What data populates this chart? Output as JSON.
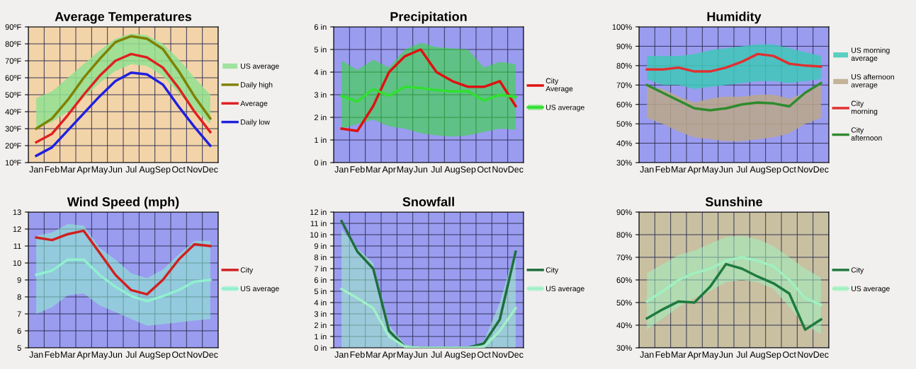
{
  "chart_data": [
    {
      "type": "line",
      "title": "Average Temperatures",
      "categories": [
        "Jan",
        "Feb",
        "Mar",
        "Apr",
        "May",
        "Jun",
        "Jul",
        "Aug",
        "Sep",
        "Oct",
        "Nov",
        "Dec"
      ],
      "ylim": [
        10,
        90
      ],
      "yticks": [
        {
          "value": 10,
          "label": "10ºF"
        },
        {
          "value": 20,
          "label": "20ºF"
        },
        {
          "value": 30,
          "label": "30ºF"
        },
        {
          "value": 40,
          "label": "40ºF"
        },
        {
          "value": 50,
          "label": "50ºF"
        },
        {
          "value": 60,
          "label": "60ºF"
        },
        {
          "value": 70,
          "label": "70ºF"
        },
        {
          "value": 80,
          "label": "80ºF"
        },
        {
          "value": 90,
          "label": "90ºF"
        }
      ],
      "grid": true,
      "legend": "right",
      "series": [
        {
          "name": "US average",
          "color": "#90e090",
          "values": [
            null,
            null,
            null,
            null,
            null,
            null,
            null,
            null,
            null,
            null,
            null,
            null
          ],
          "lower": [
            30,
            34,
            40,
            48,
            57,
            64,
            68,
            67,
            61,
            51,
            41,
            33
          ],
          "upper": [
            48,
            52,
            60,
            68,
            76,
            83,
            86,
            85,
            80,
            71,
            60,
            50
          ]
        },
        {
          "name": "Daily high",
          "color": "#808000",
          "values": [
            30,
            36,
            47,
            60,
            71,
            81,
            84.5,
            83,
            77,
            64,
            49,
            36
          ]
        },
        {
          "name": "Average",
          "color": "#e02020",
          "values": [
            22,
            27,
            38,
            50,
            61,
            70,
            74,
            72,
            66,
            54,
            40,
            28
          ]
        },
        {
          "name": "Daily low",
          "color": "#2020e0",
          "values": [
            14,
            19,
            29,
            39,
            49,
            58,
            63,
            62,
            56,
            43,
            31,
            20
          ]
        }
      ]
    },
    {
      "type": "line",
      "title": "Precipitation",
      "categories": [
        "Jan",
        "Feb",
        "Mar",
        "Apr",
        "May",
        "Jun",
        "Jul",
        "Aug",
        "Sep",
        "Oct",
        "Nov",
        "Dec"
      ],
      "ylim": [
        0,
        6
      ],
      "yticks": [
        {
          "value": 0,
          "label": "0 in"
        },
        {
          "value": 1,
          "label": "1 in"
        },
        {
          "value": 2,
          "label": "2 in"
        },
        {
          "value": 3,
          "label": "3 in"
        },
        {
          "value": 4,
          "label": "4 in"
        },
        {
          "value": 5,
          "label": "5 in"
        },
        {
          "value": 6,
          "label": "6 in"
        }
      ],
      "grid": true,
      "legend": "right",
      "series": [
        {
          "name": "City\nAverage",
          "color": "#e01010",
          "values": [
            1.5,
            1.4,
            2.5,
            4.0,
            4.7,
            5.0,
            4.0,
            3.6,
            3.35,
            3.35,
            3.6,
            2.5
          ]
        },
        {
          "name": "US average",
          "color": "#30e030",
          "values": [
            2.95,
            2.7,
            3.25,
            2.95,
            3.35,
            3.3,
            3.2,
            3.15,
            3.15,
            2.75,
            3.0,
            2.9
          ],
          "lower": [
            1.5,
            1.7,
            1.9,
            1.6,
            1.5,
            1.3,
            1.2,
            1.15,
            1.2,
            1.35,
            1.5,
            1.45
          ],
          "upper": [
            4.5,
            4.1,
            4.55,
            4.2,
            5.0,
            5.3,
            5.1,
            5.05,
            5.0,
            4.2,
            4.45,
            4.35
          ]
        }
      ]
    },
    {
      "type": "line",
      "title": "Humidity",
      "categories": [
        "Jan",
        "Feb",
        "Mar",
        "Apr",
        "May",
        "Jun",
        "Jul",
        "Aug",
        "Sep",
        "Oct",
        "Nov",
        "Dec"
      ],
      "ylim": [
        30,
        100
      ],
      "yticks": [
        {
          "value": 30,
          "label": "30%"
        },
        {
          "value": 40,
          "label": "40%"
        },
        {
          "value": 50,
          "label": "50%"
        },
        {
          "value": 60,
          "label": "60%"
        },
        {
          "value": 70,
          "label": "70%"
        },
        {
          "value": 80,
          "label": "80%"
        },
        {
          "value": 90,
          "label": "90%"
        },
        {
          "value": 100,
          "label": "100%"
        }
      ],
      "grid": true,
      "legend": "right",
      "series": [
        {
          "name": "US morning\naverage",
          "color": "#40c8b8",
          "values": [
            null,
            null,
            null,
            null,
            null,
            null,
            null,
            null,
            null,
            null,
            null,
            null
          ],
          "lower": [
            73,
            70,
            70,
            68,
            69,
            70,
            71,
            72,
            72,
            71,
            72,
            73
          ],
          "upper": [
            85,
            85,
            85,
            86,
            88,
            89,
            90,
            91,
            91,
            89,
            87,
            85
          ]
        },
        {
          "name": "US afternoon\naverage",
          "color": "#bba88a",
          "values": [
            null,
            null,
            null,
            null,
            null,
            null,
            null,
            null,
            null,
            null,
            null,
            null
          ],
          "lower": [
            53,
            50,
            46,
            43,
            42,
            41,
            41,
            42,
            43,
            45,
            50,
            53
          ],
          "upper": [
            69,
            68,
            64,
            61,
            63,
            64,
            64,
            65,
            65,
            63,
            66,
            70
          ]
        },
        {
          "name": "City\nmorning",
          "color": "#e03030",
          "values": [
            78,
            78,
            79,
            77,
            77,
            79,
            82,
            86,
            85,
            81,
            80,
            79.5
          ]
        },
        {
          "name": "City\nafternoon",
          "color": "#2e8b2e",
          "values": [
            70,
            66,
            62,
            58,
            57,
            58,
            60,
            61,
            60.5,
            59,
            66,
            71
          ]
        }
      ]
    },
    {
      "type": "line",
      "title": "Wind Speed (mph)",
      "categories": [
        "Jan",
        "Feb",
        "Mar",
        "Apr",
        "May",
        "Jun",
        "Jul",
        "Aug",
        "Sep",
        "Oct",
        "Nov",
        "Dec"
      ],
      "ylim": [
        5,
        13
      ],
      "yticks": [
        5,
        6,
        7,
        8,
        9,
        10,
        11,
        12,
        13
      ],
      "grid": true,
      "legend": "right",
      "series": [
        {
          "name": "City",
          "color": "#d02020",
          "values": [
            11.5,
            11.35,
            11.7,
            11.9,
            10.6,
            9.3,
            8.4,
            8.15,
            9.0,
            10.2,
            11.1,
            11.0
          ]
        },
        {
          "name": "US average",
          "color": "#90f0d0",
          "values": [
            9.3,
            9.55,
            10.2,
            10.2,
            9.3,
            8.6,
            8.05,
            7.75,
            8.05,
            8.4,
            8.9,
            9.0
          ],
          "lower": [
            7.0,
            7.4,
            8.1,
            8.2,
            7.5,
            7.1,
            6.7,
            6.3,
            6.4,
            6.5,
            6.6,
            6.7
          ],
          "upper": [
            11.6,
            11.8,
            12.3,
            12.2,
            10.9,
            10.2,
            9.4,
            9.1,
            9.6,
            10.5,
            11.3,
            11.3
          ]
        }
      ]
    },
    {
      "type": "line",
      "title": "Snowfall",
      "categories": [
        "Jan",
        "Feb",
        "Mar",
        "Apr",
        "May",
        "Jun",
        "Jul",
        "Aug",
        "Sep",
        "Oct",
        "Nov",
        "Dec"
      ],
      "ylim": [
        0,
        12
      ],
      "yticks": [
        {
          "value": 0,
          "label": "0 in"
        },
        {
          "value": 1,
          "label": "1 in"
        },
        {
          "value": 2,
          "label": "2 in"
        },
        {
          "value": 3,
          "label": "3 in"
        },
        {
          "value": 4,
          "label": "4 in"
        },
        {
          "value": 5,
          "label": "5 in"
        },
        {
          "value": 6,
          "label": "6 in"
        },
        {
          "value": 7,
          "label": "7 in"
        },
        {
          "value": 8,
          "label": "8 in"
        },
        {
          "value": 9,
          "label": "9 in"
        },
        {
          "value": 10,
          "label": "10 in"
        },
        {
          "value": 11,
          "label": "11 in"
        },
        {
          "value": 12,
          "label": "12 in"
        }
      ],
      "grid": true,
      "legend": "right",
      "series": [
        {
          "name": "City",
          "color": "#1e6e3e",
          "values": [
            11.2,
            8.5,
            7.0,
            1.5,
            0.1,
            0,
            0,
            0,
            0,
            0.4,
            2.5,
            8.5
          ]
        },
        {
          "name": "US average",
          "color": "#a0f0c8",
          "values": [
            5.2,
            4.4,
            3.5,
            1.0,
            0.1,
            0,
            0,
            0,
            0,
            0.1,
            1.5,
            3.5
          ],
          "lower": [
            0,
            0,
            0,
            0,
            0,
            0,
            0,
            0,
            0,
            0,
            0,
            0
          ],
          "upper": [
            10.5,
            8.8,
            7.5,
            2.0,
            0.3,
            0,
            0,
            0,
            0,
            0.6,
            4.0,
            8.8
          ]
        }
      ]
    },
    {
      "type": "line",
      "title": "Sunshine",
      "categories": [
        "Jan",
        "Feb",
        "Mar",
        "Apr",
        "May",
        "Jun",
        "Jul",
        "Aug",
        "Sep",
        "Oct",
        "Nov",
        "Dec"
      ],
      "ylim": [
        30,
        90
      ],
      "yticks": [
        {
          "value": 30,
          "label": "30%"
        },
        {
          "value": 40,
          "label": "40%"
        },
        {
          "value": 50,
          "label": "50%"
        },
        {
          "value": 60,
          "label": "60%"
        },
        {
          "value": 70,
          "label": "70%"
        },
        {
          "value": 80,
          "label": "80%"
        },
        {
          "value": 90,
          "label": "90%"
        }
      ],
      "grid": true,
      "legend": "right",
      "series": [
        {
          "name": "City",
          "color": "#1e7a3e",
          "values": [
            43,
            47,
            50.5,
            50,
            57,
            67,
            65,
            61.5,
            58.5,
            54,
            38,
            42.5
          ]
        },
        {
          "name": "US average",
          "color": "#a0f0c0",
          "values": [
            50.5,
            55,
            60,
            63,
            65,
            68.5,
            70,
            68.5,
            66,
            60,
            52,
            49
          ],
          "lower": [
            38,
            43,
            48,
            52,
            55,
            59,
            60,
            59,
            56,
            48,
            40,
            36
          ],
          "upper": [
            63,
            67,
            71,
            73,
            76,
            79,
            79.5,
            78,
            75,
            70,
            65,
            61
          ]
        }
      ]
    }
  ]
}
